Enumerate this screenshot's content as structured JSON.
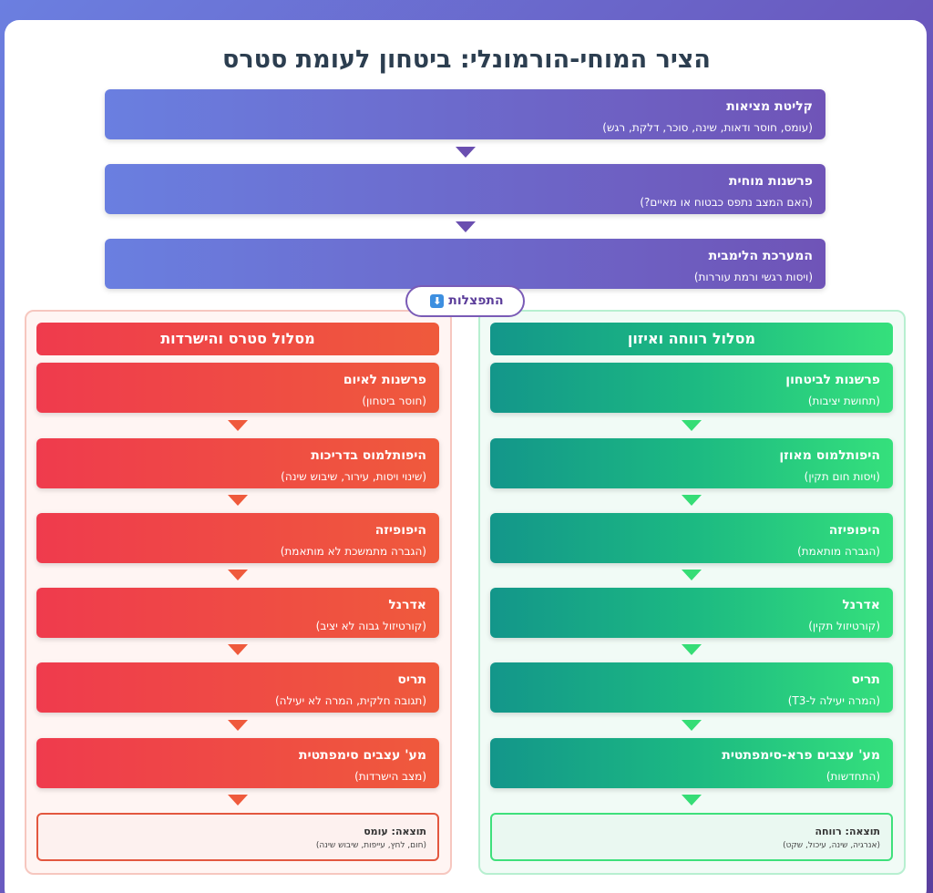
{
  "title": "הציר המוחי-הורמונלי: ביטחון לעומת סטרס",
  "top_steps": [
    {
      "title": "קליטת מציאות",
      "subtitle": "(עומס, חוסר ודאות, שינה, סוכר, דלקת, רגש)"
    },
    {
      "title": "פרשנות מוחית",
      "subtitle": "(האם המצב נתפס כבטוח או מאיים?)"
    },
    {
      "title": "המערכת הלימבית",
      "subtitle": "(ויסות רגשי ורמת עוררות)"
    }
  ],
  "split_label": "התפצלות",
  "split_icon": "⬇",
  "stress_path": {
    "header": "מסלול סטרס והישרדות",
    "steps": [
      {
        "title": "פרשנות לאיום",
        "subtitle": "(חוסר ביטחון)"
      },
      {
        "title": "היפותלמוס בדריכות",
        "subtitle": "(שינוי ויסות, עירור, שיבוש שינה)"
      },
      {
        "title": "היפופיזה",
        "subtitle": "(הגברה מתמשכת לא מותאמת)"
      },
      {
        "title": "אדרנל",
        "subtitle": "(קורטיזול גבוה לא יציב)"
      },
      {
        "title": "תריס",
        "subtitle": "(תגובה חלקית, המרה לא יעילה)"
      },
      {
        "title": "מע' עצבים סימפתטית",
        "subtitle": "(מצב הישרדות)"
      }
    ],
    "result_title": "תוצאה: עומס",
    "result_subtitle": "(חום, לחץ, עייפות, שיבוש שינה)",
    "color": "#ef4444"
  },
  "calm_path": {
    "header": "מסלול רווחה ואיזון",
    "steps": [
      {
        "title": "פרשנות לביטחון",
        "subtitle": "(תחושת יציבות)"
      },
      {
        "title": "היפותלמוס מאוזן",
        "subtitle": "(ויסות חום תקין)"
      },
      {
        "title": "היפופיזה",
        "subtitle": "(הגברה מותאמת)"
      },
      {
        "title": "אדרנל",
        "subtitle": "(קורטיזול תקין)"
      },
      {
        "title": "תריס",
        "subtitle": "(המרה יעילה ל-T3)"
      },
      {
        "title": "מע' עצבים פרא-סימפתטית",
        "subtitle": "(התחדשות)"
      }
    ],
    "result_title": "תוצאה: רווחה",
    "result_subtitle": "(אנרגיה, שינה, עיכול, שקט)",
    "color": "#22c55e"
  }
}
